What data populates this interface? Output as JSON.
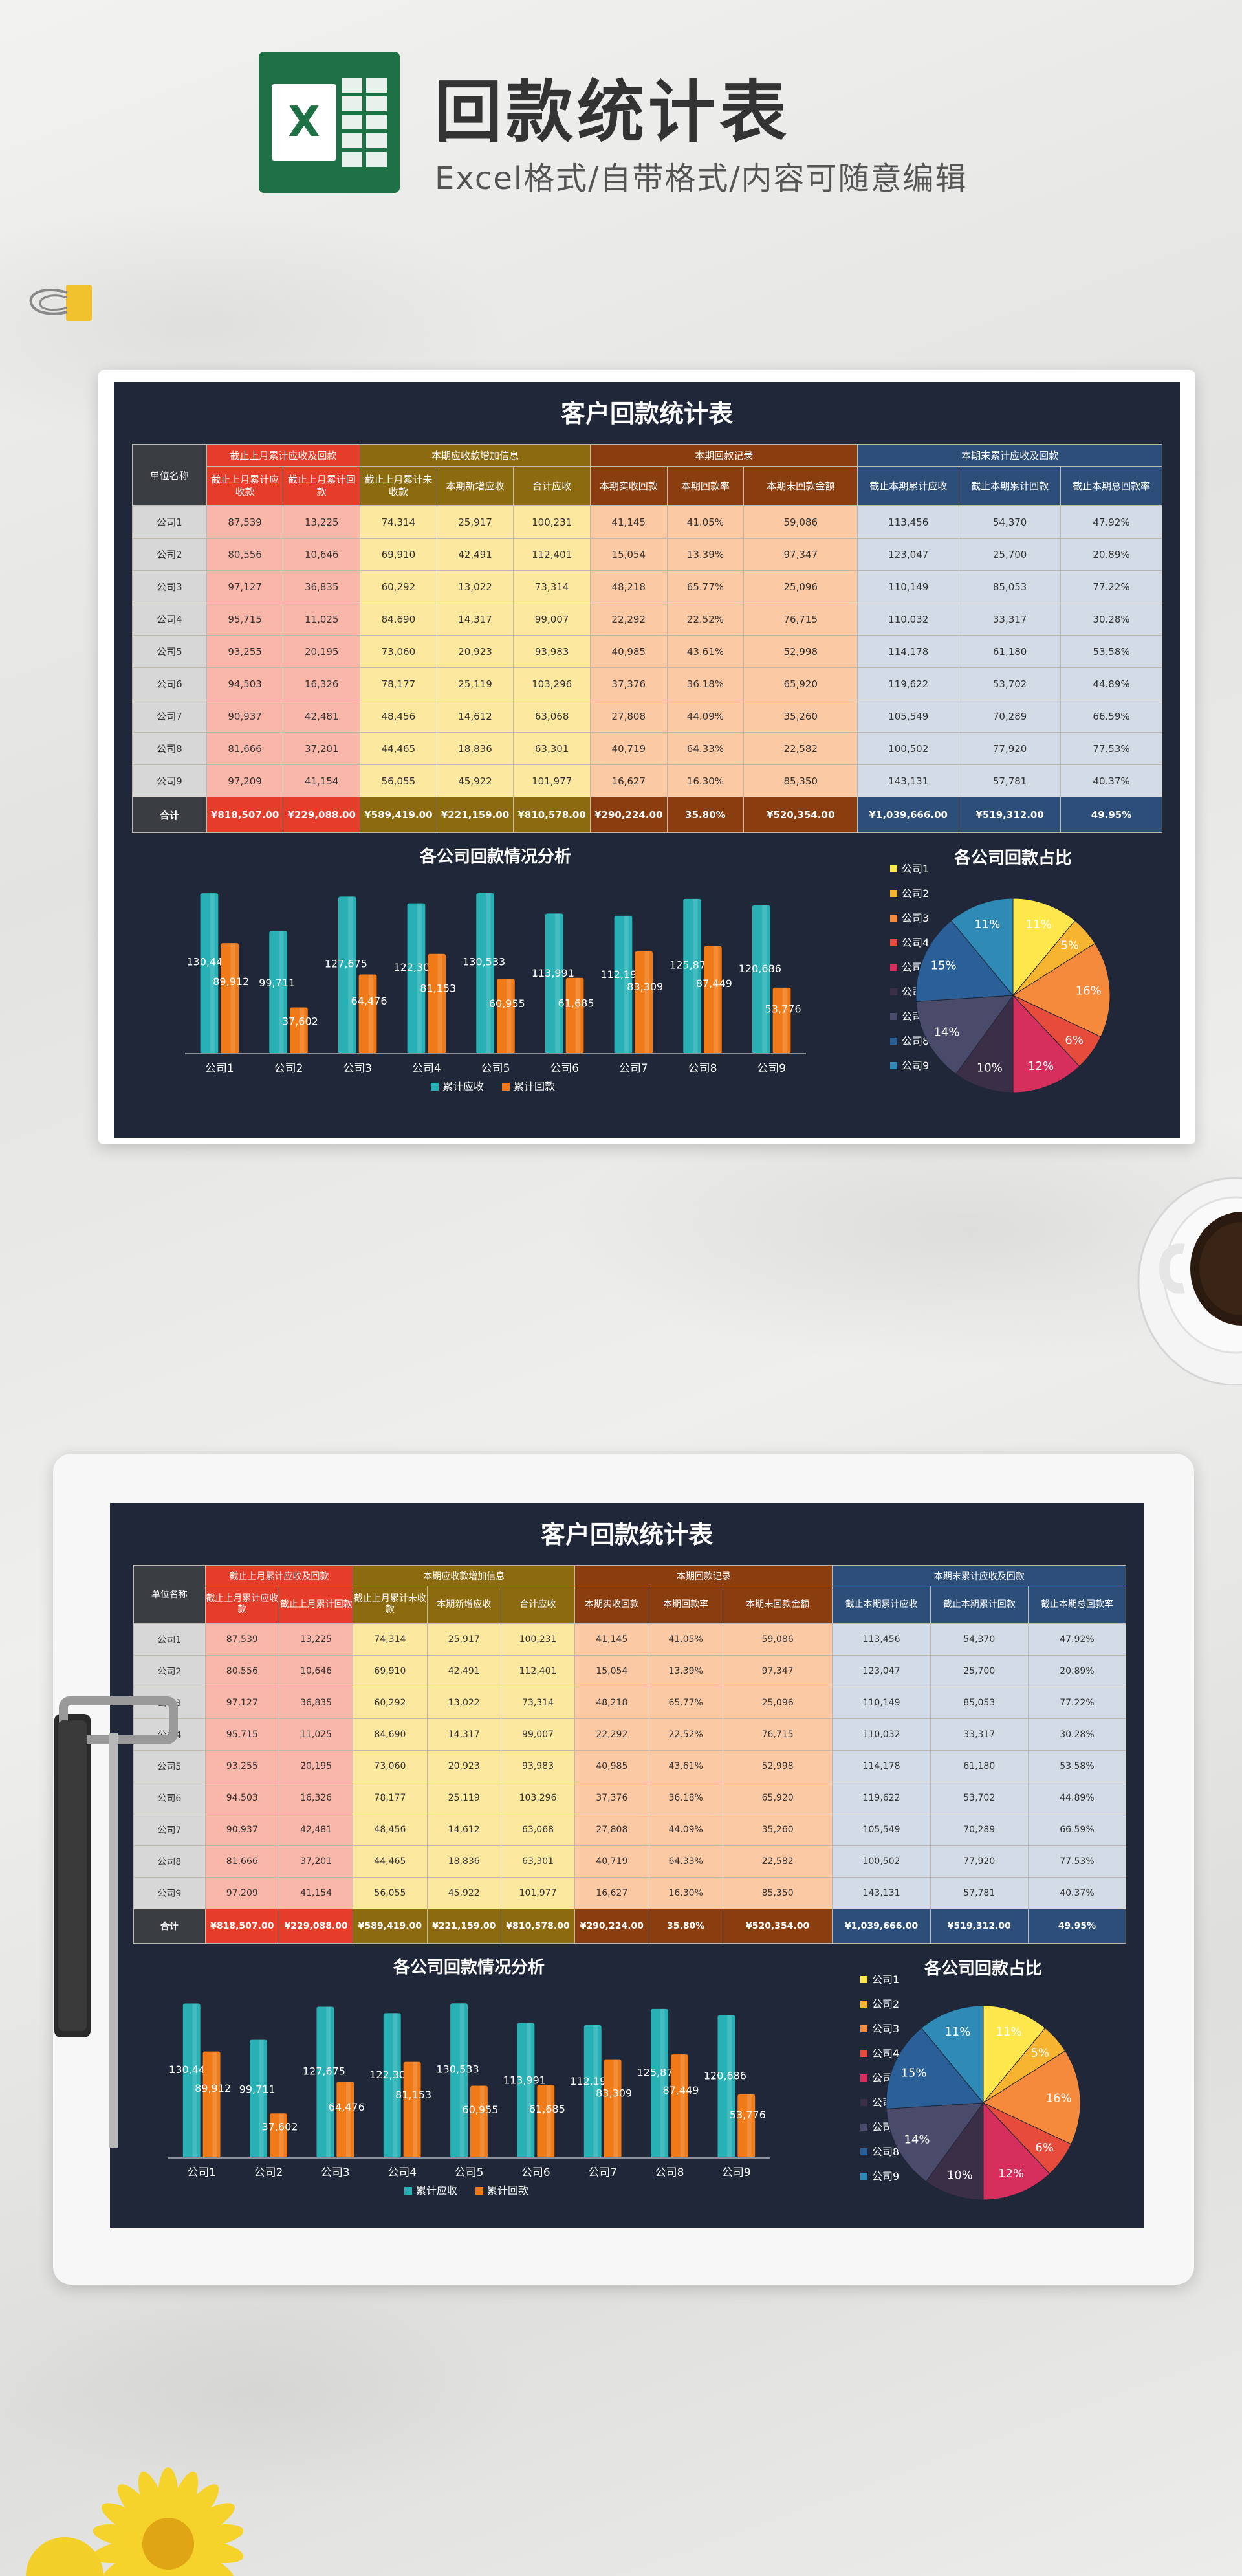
{
  "header": {
    "title": "回款统计表",
    "subtitle": "Excel格式/自带格式/内容可随意编辑",
    "logo_letter": "X"
  },
  "colors": {
    "sheet_bg": "#1f2738",
    "red": "#e63c2a",
    "olive": "#8c6a10",
    "brown": "#8a3e10",
    "blue": "#2c4e78",
    "teal": "#27b1b5",
    "orange": "#f07a17"
  },
  "sheet": {
    "title": "客户回款统计表",
    "col_name": "单位名称",
    "groups": [
      "截止上月累计应收及回款",
      "本期应收款增加信息",
      "本期回款记录",
      "本期末累计应收及回款"
    ],
    "cols": [
      "截止上月累计应收款",
      "截止上月累计回款",
      "截止上月累计未收款",
      "本期新增应收",
      "合计应收",
      "本期实收回款",
      "本期回款率",
      "本期未回款金额",
      "截止本期累计应收",
      "截止本期累计回款",
      "截止本期总回款率"
    ],
    "rows": [
      {
        "name": "公司1",
        "v": [
          "87,539",
          "13,225",
          "74,314",
          "25,917",
          "100,231",
          "41,145",
          "41.05%",
          "59,086",
          "113,456",
          "54,370",
          "47.92%"
        ]
      },
      {
        "name": "公司2",
        "v": [
          "80,556",
          "10,646",
          "69,910",
          "42,491",
          "112,401",
          "15,054",
          "13.39%",
          "97,347",
          "123,047",
          "25,700",
          "20.89%"
        ]
      },
      {
        "name": "公司3",
        "v": [
          "97,127",
          "36,835",
          "60,292",
          "13,022",
          "73,314",
          "48,218",
          "65.77%",
          "25,096",
          "110,149",
          "85,053",
          "77.22%"
        ]
      },
      {
        "name": "公司4",
        "v": [
          "95,715",
          "11,025",
          "84,690",
          "14,317",
          "99,007",
          "22,292",
          "22.52%",
          "76,715",
          "110,032",
          "33,317",
          "30.28%"
        ]
      },
      {
        "name": "公司5",
        "v": [
          "93,255",
          "20,195",
          "73,060",
          "20,923",
          "93,983",
          "40,985",
          "43.61%",
          "52,998",
          "114,178",
          "61,180",
          "53.58%"
        ]
      },
      {
        "name": "公司6",
        "v": [
          "94,503",
          "16,326",
          "78,177",
          "25,119",
          "103,296",
          "37,376",
          "36.18%",
          "65,920",
          "119,622",
          "53,702",
          "44.89%"
        ]
      },
      {
        "name": "公司7",
        "v": [
          "90,937",
          "42,481",
          "48,456",
          "14,612",
          "63,068",
          "27,808",
          "44.09%",
          "35,260",
          "105,549",
          "70,289",
          "66.59%"
        ]
      },
      {
        "name": "公司8",
        "v": [
          "81,666",
          "37,201",
          "44,465",
          "18,836",
          "63,301",
          "40,719",
          "64.33%",
          "22,582",
          "100,502",
          "77,920",
          "77.53%"
        ]
      },
      {
        "name": "公司9",
        "v": [
          "97,209",
          "41,154",
          "56,055",
          "45,922",
          "101,977",
          "16,627",
          "16.30%",
          "85,350",
          "143,131",
          "57,781",
          "40.37%"
        ]
      }
    ],
    "total": {
      "name": "合计",
      "v": [
        "¥818,507.00",
        "¥229,088.00",
        "¥589,419.00",
        "¥221,159.00",
        "¥810,578.00",
        "¥290,224.00",
        "35.80%",
        "¥520,354.00",
        "¥1,039,666.00",
        "¥519,312.00",
        "49.95%"
      ]
    }
  },
  "chart_data": [
    {
      "type": "bar",
      "title": "各公司回款情况分析",
      "categories": [
        "公司1",
        "公司2",
        "公司3",
        "公司4",
        "公司5",
        "公司6",
        "公司7",
        "公司8",
        "公司9"
      ],
      "series": [
        {
          "name": "累计应收",
          "values": [
            130447,
            99711,
            127675,
            122308,
            130533,
            113991,
            112199,
            125878,
            120686
          ]
        },
        {
          "name": "累计回款",
          "values": [
            89912,
            37602,
            64476,
            81153,
            60955,
            61685,
            83309,
            87449,
            53776
          ]
        }
      ],
      "data_labels": [
        [
          "130,447",
          "99,711",
          "127,675",
          "122,308",
          "130,533",
          "113,991",
          "112,199",
          "125,878",
          "120,686"
        ],
        [
          "89,912",
          "37,602",
          "64,476",
          "81,153",
          "60,955",
          "61,685",
          "83,309",
          "87,449",
          "53,776"
        ]
      ],
      "legend": "bottom",
      "ylim": [
        0,
        140000
      ]
    },
    {
      "type": "pie",
      "title": "各公司回款占比",
      "categories": [
        "公司1",
        "公司2",
        "公司3",
        "公司4",
        "公司5",
        "公司6",
        "公司7",
        "公司8",
        "公司9"
      ],
      "values": [
        11,
        5,
        16,
        6,
        12,
        10,
        14,
        15,
        11
      ],
      "labels": [
        "11%",
        "5%",
        "16%",
        "6%",
        "12%",
        "10%",
        "14%",
        "15%",
        "11%"
      ],
      "colors": [
        "#fde74c",
        "#f6b431",
        "#f58a3c",
        "#e64b3c",
        "#d62e5d",
        "#3b2f47",
        "#4a4a6a",
        "#2b5f97",
        "#2f8bb5"
      ],
      "legend": "left"
    }
  ]
}
